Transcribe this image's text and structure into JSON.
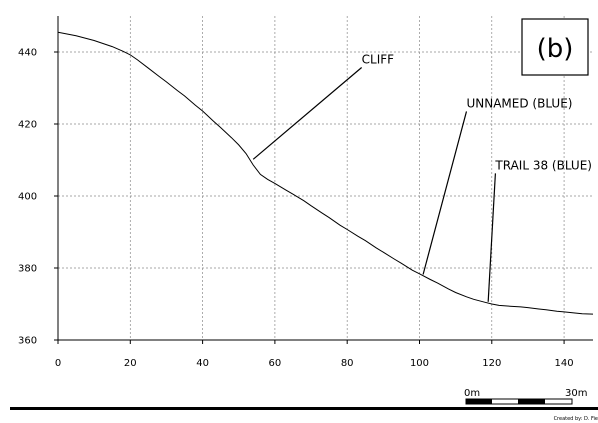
{
  "chart_data": {
    "type": "line",
    "title": "",
    "xlabel": "",
    "ylabel": "",
    "xlim": [
      0,
      148
    ],
    "ylim": [
      360,
      450
    ],
    "x_ticks": [
      0,
      20,
      40,
      60,
      80,
      100,
      120,
      140
    ],
    "y_ticks": [
      360,
      380,
      400,
      420,
      440
    ],
    "grid": true,
    "series": [
      {
        "x": [
          0,
          5,
          10,
          15,
          18,
          20,
          22,
          25,
          28,
          30,
          33,
          35,
          38,
          40,
          43,
          45,
          48,
          50,
          52,
          54,
          56,
          58,
          60,
          63,
          65,
          68,
          70,
          73,
          75,
          78,
          80,
          83,
          85,
          88,
          90,
          93,
          95,
          98,
          100,
          103,
          105,
          108,
          110,
          113,
          115,
          118,
          120,
          122,
          125,
          128,
          130,
          133,
          135,
          138,
          140,
          143,
          145,
          148
        ],
        "y": [
          445.5,
          444.5,
          443.2,
          441.5,
          440.2,
          439.2,
          437.8,
          435.5,
          433.2,
          431.7,
          429.3,
          427.8,
          425.2,
          423.6,
          420.8,
          419.0,
          416.2,
          414.2,
          411.8,
          408.6,
          406.0,
          404.6,
          403.5,
          401.7,
          400.5,
          398.7,
          397.3,
          395.3,
          394.0,
          391.9,
          390.7,
          388.8,
          387.6,
          385.6,
          384.4,
          382.5,
          381.3,
          379.4,
          378.4,
          376.8,
          375.8,
          374.2,
          373.2,
          372.0,
          371.3,
          370.5,
          370.0,
          369.6,
          369.4,
          369.2,
          369.0,
          368.6,
          368.4,
          368.0,
          367.8,
          367.5,
          367.3,
          367.2
        ]
      }
    ],
    "annotations": [
      {
        "text": "CLIFF",
        "point": [
          54,
          410.2
        ],
        "label_pos": [
          84,
          436.8
        ]
      },
      {
        "text": "UNNAMED (BLUE)",
        "point": [
          101,
          378.2
        ],
        "label_pos": [
          113,
          424.6
        ]
      },
      {
        "text": "TRAIL 38 (BLUE)",
        "point": [
          119,
          370.6
        ],
        "label_pos": [
          121,
          407.4
        ]
      }
    ],
    "panel_label": "(b)",
    "scale_bar": {
      "start_label": "0m",
      "end_label": "30m"
    },
    "credit": "Created by: D. Fie"
  },
  "colors": {
    "line": "#000000",
    "grid": "#8a8a8a",
    "background": "#ffffff"
  }
}
